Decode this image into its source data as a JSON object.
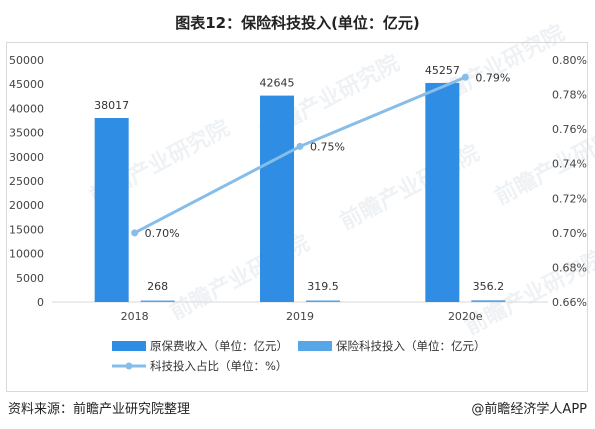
{
  "title": "图表12：保险科技投入(单位：亿元)",
  "watermark": "前瞻产业研究院",
  "footer": {
    "source": "资料来源：前瞻产业研究院整理",
    "brand": "@前瞻经济学人APP"
  },
  "colors": {
    "premium_bar": "#2f8de4",
    "tech_bar": "#56a6e8",
    "ratio_line": "#86bde9",
    "axis": "#d9d9d9"
  },
  "chart_data": {
    "type": "bar",
    "categories": [
      "2018",
      "2019",
      "2020e"
    ],
    "series": [
      {
        "name": "原保费收入（单位：亿元）",
        "kind": "bar",
        "axis": "left",
        "values": [
          38017,
          42645,
          45257
        ],
        "labels": [
          "38017",
          "42645",
          "45257"
        ]
      },
      {
        "name": "保险科技投入（单位：亿元）",
        "kind": "bar",
        "axis": "left",
        "values": [
          268,
          319.5,
          356.2
        ],
        "labels": [
          "268",
          "319.5",
          "356.2"
        ]
      },
      {
        "name": "科技投入占比（单位：%）",
        "kind": "line",
        "axis": "right",
        "values": [
          0.7,
          0.75,
          0.79
        ],
        "labels": [
          "0.70%",
          "0.75%",
          "0.79%"
        ]
      }
    ],
    "y_left": {
      "min": 0,
      "max": 50000,
      "step": 5000,
      "ticks": [
        "0",
        "5000",
        "10000",
        "15000",
        "20000",
        "25000",
        "30000",
        "35000",
        "40000",
        "45000",
        "50000"
      ]
    },
    "y_right": {
      "min": 0.66,
      "max": 0.8,
      "step": 0.02,
      "ticks": [
        "0.66%",
        "0.68%",
        "0.70%",
        "0.72%",
        "0.74%",
        "0.76%",
        "0.78%",
        "0.80%"
      ]
    },
    "grid": false,
    "legend_position": "bottom"
  }
}
